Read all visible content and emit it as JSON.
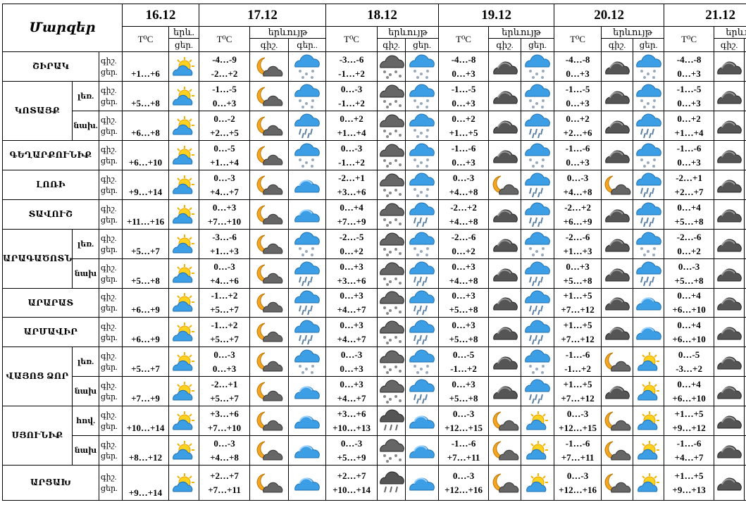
{
  "header": {
    "region_label": "Մարզեր",
    "dates": [
      "16.12",
      "17.12",
      "18.12",
      "19.12",
      "20.12",
      "21.12"
    ],
    "temp_label": "T⁰C",
    "phen_label": "երևույթ",
    "phen_short": "երև.",
    "day_label": "ցեր.",
    "night_label": "գիշ.",
    "night_dots": "գեր..",
    "day_night_combo": "գիշ.\nցեր."
  },
  "rows": [
    {
      "region": "ՇԻՐԱԿ",
      "sub": "",
      "d0": {
        "t": "+1…+6",
        "i": "sun-cloud-icon"
      },
      "days": [
        {
          "n": "-4…-9",
          "d": "-2…+2",
          "in": "moon-cloud-icon",
          "id": "cloud-snow-icon"
        },
        {
          "n": "-3…-6",
          "d": "-1…+2",
          "in": "dark-cloud-snow-icon",
          "id": "cloud-snow-icon"
        },
        {
          "n": "-4…-8",
          "d": "0…+3",
          "in": "dark-cloud-icon",
          "id": "cloud-snow-icon"
        },
        {
          "n": "-4…-8",
          "d": "0…+3",
          "in": "dark-cloud-icon",
          "id": "cloud-snow-icon"
        },
        {
          "n": "-4…-8",
          "d": "0…+3",
          "in": "dark-cloud-icon",
          "id": "cloud-snow-icon"
        }
      ]
    },
    {
      "region": "ԿՈՏԱՅՔ",
      "sub": "լեռ.",
      "d0": {
        "t": "+5…+8",
        "i": "sun-cloud-icon"
      },
      "days": [
        {
          "n": "-1…-5",
          "d": "0…+3",
          "in": "moon-cloud-icon",
          "id": "cloud-snow-icon"
        },
        {
          "n": "0…-3",
          "d": "-1…+2",
          "in": "dark-cloud-snow-icon",
          "id": "cloud-snow-icon"
        },
        {
          "n": "-1…-5",
          "d": "0…+3",
          "in": "dark-cloud-icon",
          "id": "cloud-snow-icon"
        },
        {
          "n": "-1…-5",
          "d": "0…+3",
          "in": "dark-cloud-icon",
          "id": "cloud-snow-icon"
        },
        {
          "n": "-1…-5",
          "d": "0…+3",
          "in": "dark-cloud-icon",
          "id": "cloud-snow-icon"
        }
      ]
    },
    {
      "region": "",
      "sub": "նախ.",
      "d0": {
        "t": "+6…+8",
        "i": "sun-cloud-icon"
      },
      "days": [
        {
          "n": "0…-2",
          "d": "+2…+5",
          "in": "moon-cloud-icon",
          "id": "cloud-rain-icon"
        },
        {
          "n": "0…+2",
          "d": "+1…+4",
          "in": "dark-cloud-snow-icon",
          "id": "cloud-snow-icon"
        },
        {
          "n": "0…+2",
          "d": "+1…+5",
          "in": "dark-cloud-icon",
          "id": "cloud-rain-icon"
        },
        {
          "n": "0…+2",
          "d": "+2…+6",
          "in": "dark-cloud-icon",
          "id": "cloud-rain-icon"
        },
        {
          "n": "0…+2",
          "d": "+1…+4",
          "in": "dark-cloud-icon",
          "id": "cloud-snow-icon"
        }
      ]
    },
    {
      "region": "ԳԵՂԱՐՔՈՒՆԻՔ",
      "sub": "",
      "d0": {
        "t": "+6…+10",
        "i": "sun-cloud-icon"
      },
      "days": [
        {
          "n": "0…-5",
          "d": "+1…+4",
          "in": "moon-cloud-icon",
          "id": "cloud-snow-icon"
        },
        {
          "n": "0…-3",
          "d": "-1…+2",
          "in": "dark-cloud-snow-icon",
          "id": "cloud-snow-icon"
        },
        {
          "n": "-1…-6",
          "d": "0…+3",
          "in": "dark-cloud-icon",
          "id": "cloud-snow-icon"
        },
        {
          "n": "-1…-6",
          "d": "0…+3",
          "in": "dark-cloud-icon",
          "id": "cloud-snow-icon"
        },
        {
          "n": "-1…-6",
          "d": "0…+3",
          "in": "dark-cloud-icon",
          "id": "cloud-snow-icon"
        }
      ]
    },
    {
      "region": "ԼՈՌԻ",
      "sub": "",
      "d0": {
        "t": "+9…+14",
        "i": "sun-cloud-icon"
      },
      "days": [
        {
          "n": "0…-3",
          "d": "+4…+7",
          "in": "moon-cloud-icon",
          "id": "cloud-icon"
        },
        {
          "n": "-2…+1",
          "d": "+3…+6",
          "in": "dark-cloud-snow-icon",
          "id": "cloud-snow-icon"
        },
        {
          "n": "0…-3",
          "d": "+4…+8",
          "in": "moon-cloud-icon",
          "id": "cloud-rain-icon"
        },
        {
          "n": "0…-3",
          "d": "+4…+8",
          "in": "moon-cloud-icon",
          "id": "cloud-rain-icon"
        },
        {
          "n": "-2…+1",
          "d": "+2…+7",
          "in": "dark-cloud-icon",
          "id": "cloud-rain-icon"
        }
      ]
    },
    {
      "region": "ՏԱՎՈՒՇ",
      "sub": "",
      "d0": {
        "t": "+11…+16",
        "i": "sun-cloud-icon"
      },
      "days": [
        {
          "n": "0…+3",
          "d": "+7…+10",
          "in": "moon-cloud-icon",
          "id": "cloud-icon"
        },
        {
          "n": "0…+4",
          "d": "+7…+9",
          "in": "dark-cloud-snow-icon",
          "id": "cloud-rain-icon"
        },
        {
          "n": "-2…+2",
          "d": "+4…+8",
          "in": "dark-cloud-icon",
          "id": "cloud-rain-icon"
        },
        {
          "n": "-2…+2",
          "d": "+6…+9",
          "in": "dark-cloud-icon",
          "id": "cloud-rain-icon"
        },
        {
          "n": "0…+4",
          "d": "+5…+8",
          "in": "dark-cloud-icon",
          "id": "cloud-rain-icon"
        }
      ]
    },
    {
      "region": "ԱՐԱԳԱԾՈՏՆ",
      "sub": "լեռ.",
      "d0": {
        "t": "+5…+7",
        "i": "sun-cloud-icon"
      },
      "days": [
        {
          "n": "-3…-6",
          "d": "+1…+3",
          "in": "moon-cloud-icon",
          "id": "cloud-snow-icon"
        },
        {
          "n": "-2…-5",
          "d": "0…+2",
          "in": "dark-cloud-snow-icon",
          "id": "cloud-snow-icon"
        },
        {
          "n": "-2…-6",
          "d": "0…+2",
          "in": "dark-cloud-icon",
          "id": "cloud-snow-icon"
        },
        {
          "n": "-2…-6",
          "d": "+1…+3",
          "in": "dark-cloud-icon",
          "id": "cloud-snow-icon"
        },
        {
          "n": "-2…-6",
          "d": "0…+2",
          "in": "dark-cloud-icon",
          "id": "cloud-snow-icon"
        }
      ]
    },
    {
      "region": "",
      "sub": "նախ",
      "d0": {
        "t": "+5…+8",
        "i": "sun-cloud-icon"
      },
      "days": [
        {
          "n": "0…-3",
          "d": "+4…+6",
          "in": "moon-cloud-icon",
          "id": "cloud-rain-icon"
        },
        {
          "n": "0…+3",
          "d": "+3…+6",
          "in": "dark-cloud-snow-icon",
          "id": "cloud-rain-icon"
        },
        {
          "n": "0…+3",
          "d": "+4…+8",
          "in": "dark-cloud-icon",
          "id": "cloud-rain-icon"
        },
        {
          "n": "0…+3",
          "d": "+5…+8",
          "in": "dark-cloud-icon",
          "id": "cloud-rain-icon"
        },
        {
          "n": "0…-3",
          "d": "+5…+8",
          "in": "dark-cloud-icon",
          "id": "cloud-rain-icon"
        }
      ]
    },
    {
      "region": "ԱՐԱՐԱՏ",
      "sub": "",
      "d0": {
        "t": "+6…+9",
        "i": "sun-cloud-icon"
      },
      "days": [
        {
          "n": "-1…+2",
          "d": "+5…+7",
          "in": "moon-cloud-icon",
          "id": "cloud-rain-icon"
        },
        {
          "n": "0…+3",
          "d": "+4…+7",
          "in": "dark-cloud-snow-icon",
          "id": "cloud-rain-icon"
        },
        {
          "n": "0…+3",
          "d": "+5…+8",
          "in": "dark-cloud-icon",
          "id": "cloud-rain-icon"
        },
        {
          "n": "+1…+5",
          "d": "+7…+12",
          "in": "dark-cloud-icon",
          "id": "cloud-icon"
        },
        {
          "n": "0…+4",
          "d": "+6…+10",
          "in": "dark-cloud-icon",
          "id": "cloud-icon"
        }
      ]
    },
    {
      "region": "ԱՐՄԱՎԻՐ",
      "sub": "",
      "d0": {
        "t": "+6…+9",
        "i": "sun-cloud-icon"
      },
      "days": [
        {
          "n": "-1…+2",
          "d": "+5…+7",
          "in": "moon-cloud-icon",
          "id": "cloud-rain-icon"
        },
        {
          "n": "0…+3",
          "d": "+4…+7",
          "in": "dark-cloud-snow-icon",
          "id": "cloud-rain-icon"
        },
        {
          "n": "0…+3",
          "d": "+5…+8",
          "in": "dark-cloud-icon",
          "id": "cloud-rain-icon"
        },
        {
          "n": "+1…+5",
          "d": "+7…+12",
          "in": "dark-cloud-icon",
          "id": "cloud-icon"
        },
        {
          "n": "0…+4",
          "d": "+6…+10",
          "in": "dark-cloud-icon",
          "id": "cloud-icon"
        }
      ]
    },
    {
      "region": "ՎԱՅՈՑ ՁՈՐ",
      "sub": "լեռ.",
      "d0": {
        "t": "+5…+7",
        "i": "sun-cloud-icon"
      },
      "days": [
        {
          "n": "0…-3",
          "d": "0…+3",
          "in": "moon-cloud-icon",
          "id": "cloud-snow-icon"
        },
        {
          "n": "0…-3",
          "d": "0…+3",
          "in": "dark-cloud-snow-icon",
          "id": "cloud-snow-icon"
        },
        {
          "n": "0…-5",
          "d": "-1…+2",
          "in": "dark-cloud-icon",
          "id": "cloud-snow-icon"
        },
        {
          "n": "-1…-6",
          "d": "-1…+2",
          "in": "moon-cloud-icon",
          "id": "sun-cloud-icon"
        },
        {
          "n": "0…-5",
          "d": "-3…+2",
          "in": "dark-cloud-icon",
          "id": "cloud-snow-icon"
        }
      ]
    },
    {
      "region": "",
      "sub": "նախ",
      "d0": {
        "t": "+7…+9",
        "i": "sun-cloud-icon"
      },
      "days": [
        {
          "n": "-2…+1",
          "d": "+5…+7",
          "in": "moon-cloud-icon",
          "id": "cloud-icon"
        },
        {
          "n": "0…+3",
          "d": "+4…+7",
          "in": "dark-cloud-snow-icon",
          "id": "cloud-rain-icon"
        },
        {
          "n": "0…+3",
          "d": "+5…+8",
          "in": "dark-cloud-icon",
          "id": "cloud-rain-icon"
        },
        {
          "n": "+1…+5",
          "d": "+7…+12",
          "in": "dark-cloud-icon",
          "id": "sun-cloud-icon"
        },
        {
          "n": "0…+4",
          "d": "+6…+10",
          "in": "dark-cloud-icon",
          "id": "cloud-icon"
        }
      ]
    },
    {
      "region": "ՍՅՈՒՆԻՔ",
      "sub": "հով.",
      "d0": {
        "t": "+10…+14",
        "i": "sun-cloud-icon"
      },
      "days": [
        {
          "n": "+3…+6",
          "d": "+7…+10",
          "in": "moon-cloud-icon",
          "id": "cloud-icon"
        },
        {
          "n": "+3…+6",
          "d": "+10…+13",
          "in": "dark-cloud-rain-icon",
          "id": "cloud-icon"
        },
        {
          "n": "0…-3",
          "d": "+12…+15",
          "in": "moon-cloud-icon",
          "id": "sun-cloud-icon"
        },
        {
          "n": "0…-3",
          "d": "+12…+15",
          "in": "moon-cloud-icon",
          "id": "sun-cloud-icon"
        },
        {
          "n": "+1…+5",
          "d": "+9…+12",
          "in": "dark-cloud-icon",
          "id": "cloud-rain-icon"
        }
      ]
    },
    {
      "region": "",
      "sub": "նախ",
      "d0": {
        "t": "+8…+12",
        "i": "sun-cloud-icon"
      },
      "days": [
        {
          "n": "0…-3",
          "d": "+4…+8",
          "in": "moon-cloud-icon",
          "id": "cloud-icon"
        },
        {
          "n": "0…-3",
          "d": "+5…+9",
          "in": "dark-cloud-snow-icon",
          "id": "cloud-icon"
        },
        {
          "n": "-1…-6",
          "d": "+7…+11",
          "in": "moon-cloud-icon",
          "id": "sun-cloud-icon"
        },
        {
          "n": "-1…-6",
          "d": "+7…+11",
          "in": "moon-cloud-icon",
          "id": "sun-cloud-icon"
        },
        {
          "n": "-1…-6",
          "d": "+4…+7",
          "in": "dark-cloud-icon",
          "id": "cloud-rain-icon"
        }
      ]
    },
    {
      "region": "ԱՐՑԱԽ",
      "sub": "",
      "d0": {
        "t": "+9…+14",
        "i": "sun-cloud-icon"
      },
      "days": [
        {
          "n": "+2…+7",
          "d": "+7…+11",
          "in": "moon-cloud-icon",
          "id": "cloud-icon"
        },
        {
          "n": "+2…+7",
          "d": "+10…+14",
          "in": "dark-cloud-rain-icon",
          "id": "cloud-icon"
        },
        {
          "n": "0…-3",
          "d": "+12…+16",
          "in": "moon-cloud-icon",
          "id": "sun-cloud-icon"
        },
        {
          "n": "0…-3",
          "d": "+12…+16",
          "in": "moon-cloud-icon",
          "id": "sun-cloud-icon"
        },
        {
          "n": "+1…+5",
          "d": "+9…+13",
          "in": "dark-cloud-icon",
          "id": "cloud-rain-icon"
        }
      ]
    }
  ]
}
